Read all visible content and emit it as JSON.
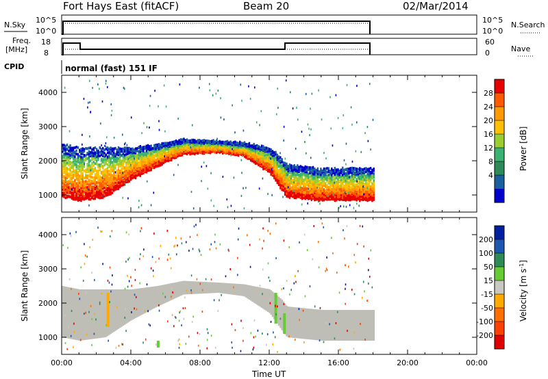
{
  "header": {
    "station": "Fort Hays East (fitACF)",
    "beam": "Beam 20",
    "date": "02/Mar/2014"
  },
  "top_panel": {
    "nsky_label": "N.Sky",
    "nsearch_label": "N.Search",
    "freq_label_top": "Freq.",
    "freq_label_bottom": "[MHz]",
    "nave_label": "Nave",
    "cpid_label": "CPID",
    "cpid_value": "normal (fast) 151 IF",
    "noise_ticks": [
      "10^5",
      "10^0"
    ],
    "freq_ticks": [
      "18",
      "8"
    ],
    "nave_ticks": [
      "60",
      "0"
    ]
  },
  "chart_data": [
    {
      "type": "heatmap",
      "name": "power-panel",
      "xlabel": "",
      "ylabel": "Slant Range [km]",
      "xlim": [
        0,
        24
      ],
      "ylim": [
        500,
        4500
      ],
      "yticks": [
        "1000",
        "2000",
        "3000",
        "4000"
      ],
      "colorbar": {
        "label": "Power [dB]",
        "ticks": [
          "28",
          "24",
          "20",
          "16",
          "12",
          "8",
          "4"
        ],
        "colors": [
          "#e60000",
          "#ff5a00",
          "#ff9a00",
          "#ffc000",
          "#9acd32",
          "#3cb371",
          "#2e8b57",
          "#1a5f9e",
          "#0000cc"
        ]
      },
      "main_band": [
        {
          "t": 0.0,
          "low": 1000,
          "high": 2500
        },
        {
          "t": 1.0,
          "low": 900,
          "high": 2400
        },
        {
          "t": 2.5,
          "low": 1000,
          "high": 2400
        },
        {
          "t": 4.0,
          "low": 1500,
          "high": 2400
        },
        {
          "t": 5.5,
          "low": 1900,
          "high": 2500
        },
        {
          "t": 7.0,
          "low": 2250,
          "high": 2650
        },
        {
          "t": 9.0,
          "low": 2300,
          "high": 2600
        },
        {
          "t": 10.5,
          "low": 2200,
          "high": 2550
        },
        {
          "t": 12.0,
          "low": 1700,
          "high": 2400
        },
        {
          "t": 12.7,
          "low": 1200,
          "high": 2100
        },
        {
          "t": 13.0,
          "low": 1000,
          "high": 1900
        },
        {
          "t": 15.0,
          "low": 900,
          "high": 1800
        },
        {
          "t": 18.0,
          "low": 900,
          "high": 1800
        }
      ]
    },
    {
      "type": "heatmap",
      "name": "velocity-panel",
      "xlabel": "Time UT",
      "ylabel": "Slant Range [km]",
      "xlim": [
        0,
        24
      ],
      "ylim": [
        500,
        4500
      ],
      "xticks": [
        "00:00",
        "04:00",
        "08:00",
        "12:00",
        "16:00",
        "20:00",
        "00:00"
      ],
      "yticks": [
        "1000",
        "2000",
        "3000",
        "4000"
      ],
      "colorbar": {
        "label": "Velocity [m s^-1]",
        "ticks": [
          "200",
          "100",
          "50",
          "15",
          "-15",
          "-50",
          "-100",
          "-200"
        ],
        "colors": [
          "#0020a0",
          "#1e56b0",
          "#2e8b57",
          "#66cc33",
          "#c8c8c0",
          "#ffaa00",
          "#ff7000",
          "#ff4000",
          "#e00000"
        ]
      }
    }
  ],
  "colors": {
    "ground_scatter": "#bebeb6",
    "axis": "#000000",
    "background": "#ffffff"
  }
}
